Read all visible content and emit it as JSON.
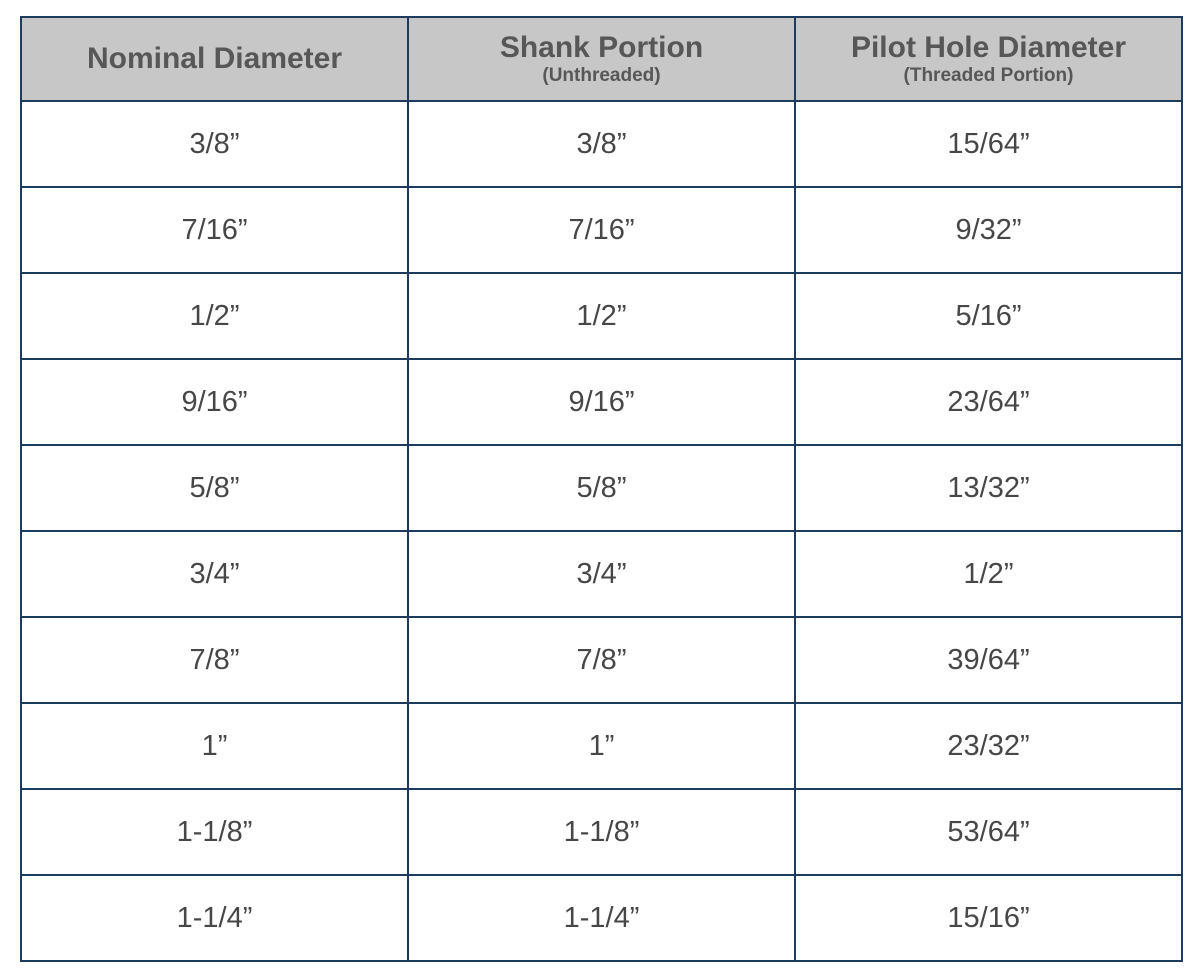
{
  "headers": [
    {
      "title": "Nominal Diameter",
      "subtitle": ""
    },
    {
      "title": "Shank Portion",
      "subtitle": "(Unthreaded)"
    },
    {
      "title": "Pilot Hole Diameter",
      "subtitle": "(Threaded Portion)"
    }
  ],
  "rows": [
    [
      "3/8”",
      "3/8”",
      "15/64”"
    ],
    [
      "7/16”",
      "7/16”",
      "9/32”"
    ],
    [
      "1/2”",
      "1/2”",
      "5/16”"
    ],
    [
      "9/16”",
      "9/16”",
      "23/64”"
    ],
    [
      "5/8”",
      "5/8”",
      "13/32”"
    ],
    [
      "3/4”",
      "3/4”",
      "1/2”"
    ],
    [
      "7/8”",
      "7/8”",
      "39/64”"
    ],
    [
      "1”",
      "1”",
      "23/32”"
    ],
    [
      "1-1/8”",
      "1-1/8”",
      "53/64”"
    ],
    [
      "1-1/4”",
      "1-1/4”",
      "15/16”"
    ]
  ],
  "colors": {
    "border": "#1d3b5c",
    "header_bg": "#c7c7c7",
    "header_text": "#575757",
    "cell_text": "#474747"
  }
}
